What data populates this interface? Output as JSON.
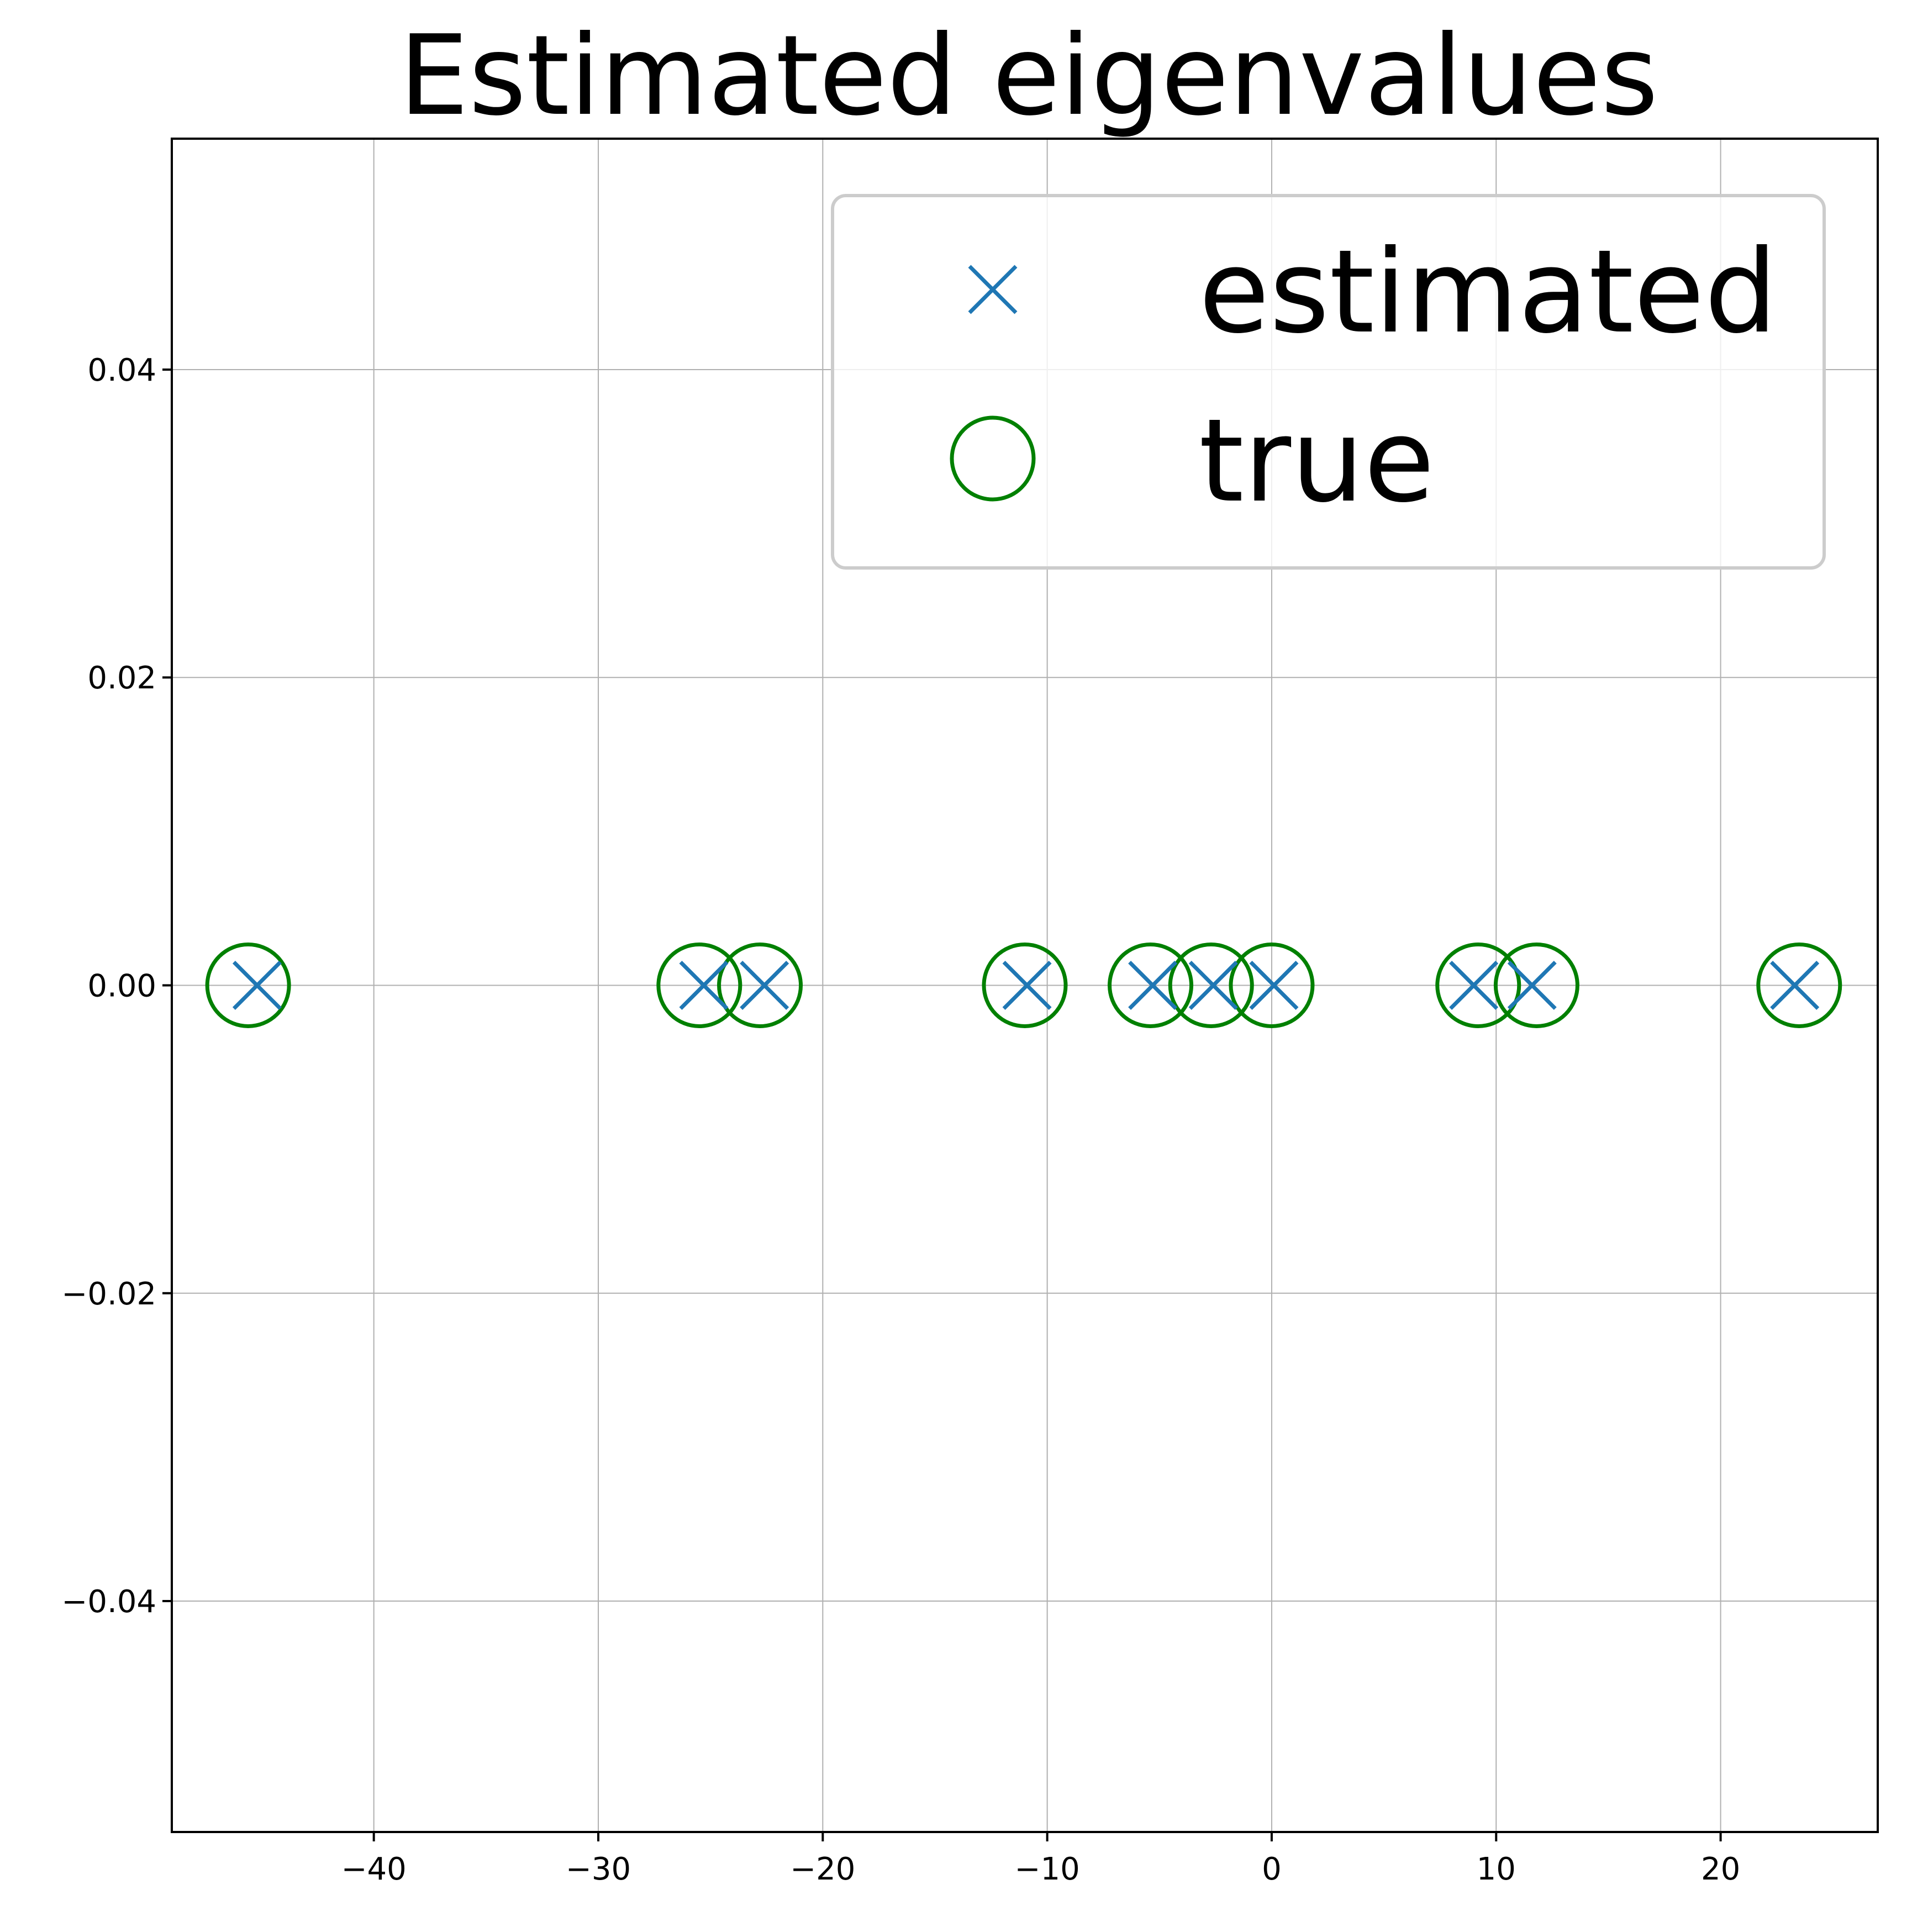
{
  "chart_data": {
    "type": "scatter",
    "title": "Estimated eigenvalues",
    "xlabel": "",
    "ylabel": "",
    "xlim": [
      -49,
      27
    ],
    "ylim": [
      -0.055,
      0.055
    ],
    "x_ticks": [
      -40,
      -30,
      -20,
      -10,
      0,
      10,
      20
    ],
    "x_tick_labels": [
      "−40",
      "−30",
      "−20",
      "−10",
      "0",
      "10",
      "20"
    ],
    "y_ticks": [
      -0.04,
      -0.02,
      0.0,
      0.02,
      0.04
    ],
    "y_tick_labels": [
      "−0.04",
      "−0.02",
      "0.00",
      "0.02",
      "0.04"
    ],
    "grid": true,
    "legend_position": "top-right",
    "series": [
      {
        "name": "estimated",
        "marker": "x",
        "color": "#1f77b4",
        "points": [
          {
            "x": -45.2,
            "y": 0.0
          },
          {
            "x": -25.3,
            "y": 0.0
          },
          {
            "x": -22.6,
            "y": 0.0
          },
          {
            "x": -10.9,
            "y": 0.0
          },
          {
            "x": -5.3,
            "y": 0.0
          },
          {
            "x": -2.6,
            "y": 0.0
          },
          {
            "x": 0.1,
            "y": 0.0
          },
          {
            "x": 9.0,
            "y": 0.0
          },
          {
            "x": 11.6,
            "y": 0.0
          },
          {
            "x": 23.3,
            "y": 0.0
          }
        ]
      },
      {
        "name": "true",
        "marker": "o",
        "color": "#008000",
        "points": [
          {
            "x": -45.6,
            "y": 0.0
          },
          {
            "x": -25.5,
            "y": 0.0
          },
          {
            "x": -22.8,
            "y": 0.0
          },
          {
            "x": -11.0,
            "y": 0.0
          },
          {
            "x": -5.4,
            "y": 0.0
          },
          {
            "x": -2.7,
            "y": 0.0
          },
          {
            "x": 0.0,
            "y": 0.0
          },
          {
            "x": 9.2,
            "y": 0.0
          },
          {
            "x": 11.8,
            "y": 0.0
          },
          {
            "x": 23.5,
            "y": 0.0
          }
        ]
      }
    ]
  }
}
